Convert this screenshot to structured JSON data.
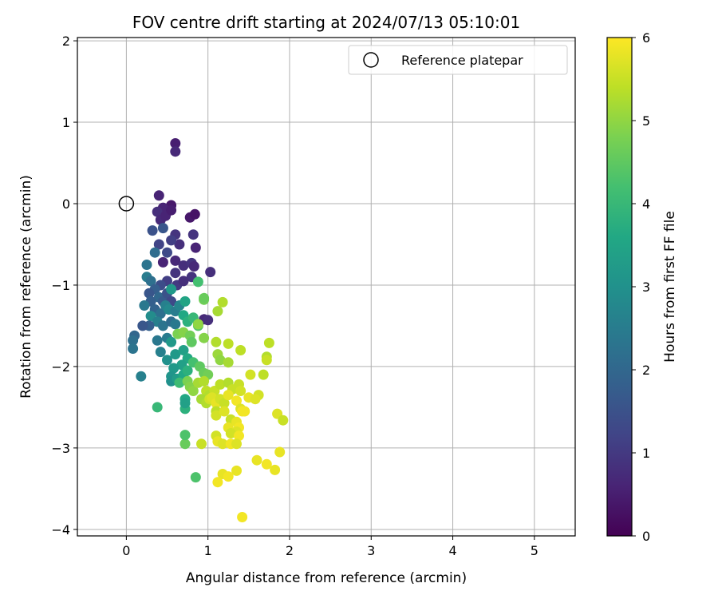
{
  "chart_data": {
    "type": "scatter",
    "title": "FOV centre drift starting at 2024/07/13 05:10:01",
    "xlabel": "Angular distance from reference (arcmin)",
    "ylabel": "Rotation from reference (arcmin)",
    "xlim": [
      -0.6,
      5.5
    ],
    "ylim": [
      -4.08,
      2.04
    ],
    "xticks": [
      0,
      1,
      2,
      3,
      4,
      5
    ],
    "yticks": [
      -4,
      -3,
      -2,
      -1,
      0,
      1,
      2
    ],
    "xtick_labels": [
      "0",
      "1",
      "2",
      "3",
      "4",
      "5"
    ],
    "ytick_labels": [
      "−4",
      "−3",
      "−2",
      "−1",
      "0",
      "1",
      "2"
    ],
    "grid": true,
    "legend": {
      "placement": "top-right",
      "entries": [
        "Reference platepar"
      ]
    },
    "reference_point": {
      "x": 0,
      "y": 0,
      "name": "Reference platepar"
    },
    "colorbar": {
      "label": "Hours from first FF file",
      "range": [
        0,
        6
      ],
      "ticks": [
        0,
        1,
        2,
        3,
        4,
        5,
        6
      ],
      "tick_labels": [
        "0",
        "1",
        "2",
        "3",
        "4",
        "5",
        "6"
      ],
      "colormap": "viridis"
    },
    "points": [
      [
        0.6,
        0.74,
        0.5
      ],
      [
        0.6,
        0.64,
        0.7
      ],
      [
        0.4,
        0.1,
        0.6
      ],
      [
        0.55,
        -0.02,
        0.4
      ],
      [
        0.5,
        -0.1,
        0.5
      ],
      [
        0.45,
        -0.05,
        0.6
      ],
      [
        0.38,
        -0.1,
        0.8
      ],
      [
        0.42,
        -0.2,
        0.7
      ],
      [
        0.48,
        -0.15,
        0.6
      ],
      [
        0.55,
        -0.08,
        0.5
      ],
      [
        0.78,
        -0.17,
        0.4
      ],
      [
        0.84,
        -0.13,
        0.3
      ],
      [
        0.32,
        -0.33,
        1.5
      ],
      [
        0.45,
        -0.3,
        1.6
      ],
      [
        0.6,
        -0.38,
        0.9
      ],
      [
        0.65,
        -0.5,
        0.8
      ],
      [
        0.82,
        -0.38,
        0.9
      ],
      [
        0.85,
        -0.54,
        0.6
      ],
      [
        0.55,
        -0.45,
        1.1
      ],
      [
        0.4,
        -0.5,
        1.2
      ],
      [
        0.5,
        -0.6,
        1.3
      ],
      [
        0.35,
        -0.6,
        2.1
      ],
      [
        0.45,
        -0.72,
        0.6
      ],
      [
        0.6,
        -0.7,
        0.7
      ],
      [
        0.7,
        -0.76,
        0.8
      ],
      [
        0.8,
        -0.73,
        0.9
      ],
      [
        0.83,
        -0.77,
        0.7
      ],
      [
        1.03,
        -0.84,
        0.8
      ],
      [
        0.6,
        -0.85,
        0.9
      ],
      [
        0.62,
        -1.0,
        1.0
      ],
      [
        0.8,
        -0.9,
        0.9
      ],
      [
        0.7,
        -0.95,
        0.8
      ],
      [
        0.5,
        -0.95,
        1.1
      ],
      [
        0.42,
        -1.0,
        1.4
      ],
      [
        0.25,
        -0.75,
        2.3
      ],
      [
        0.25,
        -0.9,
        2.5
      ],
      [
        0.3,
        -0.95,
        2.2
      ],
      [
        0.35,
        -1.05,
        1.8
      ],
      [
        0.28,
        -1.1,
        1.6
      ],
      [
        0.4,
        -1.15,
        2.0
      ],
      [
        0.45,
        -1.2,
        1.7
      ],
      [
        0.5,
        -1.1,
        1.5
      ],
      [
        0.55,
        -1.2,
        1.3
      ],
      [
        0.3,
        -1.2,
        1.8
      ],
      [
        0.22,
        -1.25,
        2.4
      ],
      [
        0.35,
        -1.3,
        1.9
      ],
      [
        0.42,
        -1.35,
        2.2
      ],
      [
        0.48,
        -1.25,
        2.6
      ],
      [
        0.52,
        -1.3,
        2.8
      ],
      [
        0.6,
        -1.32,
        2.5
      ],
      [
        0.65,
        -1.25,
        2.7
      ],
      [
        0.55,
        -1.05,
        3.2
      ],
      [
        0.72,
        -1.2,
        3.5
      ],
      [
        0.88,
        -0.96,
        4.2
      ],
      [
        0.3,
        -1.38,
        2.9
      ],
      [
        0.38,
        -1.45,
        2.6
      ],
      [
        0.45,
        -1.5,
        2.3
      ],
      [
        0.55,
        -1.45,
        2.1
      ],
      [
        0.6,
        -1.48,
        2.4
      ],
      [
        0.7,
        -1.37,
        3.6
      ],
      [
        0.75,
        -1.45,
        3.8
      ],
      [
        0.82,
        -1.4,
        4.0
      ],
      [
        0.88,
        -1.5,
        4.4
      ],
      [
        0.95,
        -1.42,
        0.7
      ],
      [
        1.0,
        -1.43,
        0.8
      ],
      [
        0.28,
        -1.5,
        1.8
      ],
      [
        0.2,
        -1.5,
        1.6
      ],
      [
        0.1,
        -1.62,
        2.0
      ],
      [
        0.08,
        -1.68,
        2.2
      ],
      [
        0.08,
        -1.78,
        2.3
      ],
      [
        0.18,
        -2.12,
        2.6
      ],
      [
        0.38,
        -1.68,
        2.4
      ],
      [
        0.5,
        -1.65,
        2.5
      ],
      [
        0.42,
        -1.82,
        2.6
      ],
      [
        0.55,
        -1.7,
        3.2
      ],
      [
        0.63,
        -1.6,
        4.8
      ],
      [
        0.7,
        -1.58,
        4.9
      ],
      [
        0.78,
        -1.62,
        4.7
      ],
      [
        0.8,
        -1.7,
        4.5
      ],
      [
        0.88,
        -1.48,
        5.0
      ],
      [
        0.95,
        -1.65,
        4.9
      ],
      [
        0.95,
        -1.18,
        4.7
      ],
      [
        0.95,
        -1.16,
        4.6
      ],
      [
        1.12,
        -1.32,
        5.2
      ],
      [
        1.18,
        -1.21,
        5.3
      ],
      [
        1.1,
        -1.7,
        5.3
      ],
      [
        1.25,
        -1.72,
        5.4
      ],
      [
        1.4,
        -1.8,
        5.4
      ],
      [
        1.75,
        -1.71,
        5.4
      ],
      [
        1.72,
        -1.88,
        5.3
      ],
      [
        1.72,
        -1.92,
        5.5
      ],
      [
        1.68,
        -2.1,
        5.4
      ],
      [
        1.52,
        -2.1,
        5.6
      ],
      [
        1.12,
        -1.85,
        5.1
      ],
      [
        1.15,
        -1.92,
        5.0
      ],
      [
        1.25,
        -1.95,
        5.2
      ],
      [
        0.5,
        -1.92,
        3.0
      ],
      [
        0.6,
        -1.85,
        3.2
      ],
      [
        0.7,
        -1.8,
        3.4
      ],
      [
        0.75,
        -1.9,
        3.6
      ],
      [
        0.68,
        -1.98,
        3.4
      ],
      [
        0.58,
        -2.02,
        3.2
      ],
      [
        0.55,
        -2.12,
        3.1
      ],
      [
        0.55,
        -2.18,
        3.0
      ],
      [
        0.62,
        -2.15,
        3.3
      ],
      [
        0.7,
        -2.1,
        3.6
      ],
      [
        0.75,
        -2.05,
        3.8
      ],
      [
        0.82,
        -1.95,
        4.2
      ],
      [
        0.9,
        -2.0,
        4.5
      ],
      [
        0.95,
        -2.08,
        4.6
      ],
      [
        1.0,
        -2.1,
        4.7
      ],
      [
        0.65,
        -2.2,
        4.1
      ],
      [
        0.75,
        -2.18,
        4.8
      ],
      [
        0.78,
        -2.25,
        4.9
      ],
      [
        0.82,
        -2.3,
        5.0
      ],
      [
        0.88,
        -2.2,
        5.2
      ],
      [
        0.95,
        -2.18,
        5.3
      ],
      [
        0.98,
        -2.3,
        5.4
      ],
      [
        1.02,
        -2.35,
        5.3
      ],
      [
        1.08,
        -2.3,
        5.5
      ],
      [
        1.15,
        -2.22,
        5.4
      ],
      [
        1.25,
        -2.2,
        5.3
      ],
      [
        1.3,
        -2.28,
        5.5
      ],
      [
        1.38,
        -2.22,
        5.5
      ],
      [
        1.4,
        -2.3,
        5.6
      ],
      [
        0.72,
        -2.4,
        3.6
      ],
      [
        0.72,
        -2.52,
        3.8
      ],
      [
        0.72,
        -2.45,
        3.4
      ],
      [
        0.72,
        -2.95,
        4.6
      ],
      [
        0.72,
        -2.84,
        4.3
      ],
      [
        0.38,
        -2.5,
        4.0
      ],
      [
        0.92,
        -2.4,
        5.2
      ],
      [
        0.98,
        -2.45,
        5.3
      ],
      [
        1.02,
        -2.4,
        5.6
      ],
      [
        1.05,
        -2.38,
        5.7
      ],
      [
        1.1,
        -2.45,
        5.8
      ],
      [
        1.15,
        -2.4,
        5.6
      ],
      [
        1.2,
        -2.45,
        5.5
      ],
      [
        1.25,
        -2.35,
        5.8
      ],
      [
        1.35,
        -2.42,
        5.9
      ],
      [
        1.4,
        -2.52,
        5.7
      ],
      [
        1.45,
        -2.55,
        5.9
      ],
      [
        1.5,
        -2.38,
        5.8
      ],
      [
        1.62,
        -2.35,
        5.6
      ],
      [
        1.58,
        -2.4,
        5.7
      ],
      [
        1.1,
        -2.55,
        5.4
      ],
      [
        1.1,
        -2.6,
        5.6
      ],
      [
        1.2,
        -2.55,
        5.7
      ],
      [
        1.28,
        -2.65,
        5.5
      ],
      [
        1.35,
        -2.68,
        5.8
      ],
      [
        1.38,
        -2.75,
        5.9
      ],
      [
        1.35,
        -2.8,
        5.7
      ],
      [
        1.25,
        -2.75,
        5.8
      ],
      [
        1.28,
        -2.82,
        5.6
      ],
      [
        1.38,
        -2.85,
        5.9
      ],
      [
        0.92,
        -2.95,
        5.5
      ],
      [
        1.1,
        -2.85,
        5.6
      ],
      [
        1.12,
        -2.92,
        5.8
      ],
      [
        1.18,
        -2.95,
        5.7
      ],
      [
        1.28,
        -2.95,
        5.9
      ],
      [
        1.35,
        -2.95,
        5.7
      ],
      [
        1.85,
        -2.58,
        5.7
      ],
      [
        1.92,
        -2.66,
        5.5
      ],
      [
        1.88,
        -3.05,
        5.8
      ],
      [
        1.6,
        -3.15,
        5.8
      ],
      [
        1.72,
        -3.2,
        5.9
      ],
      [
        1.82,
        -3.27,
        5.8
      ],
      [
        1.35,
        -3.28,
        5.8
      ],
      [
        1.18,
        -3.32,
        5.8
      ],
      [
        1.25,
        -3.35,
        5.9
      ],
      [
        1.12,
        -3.42,
        5.9
      ],
      [
        0.85,
        -3.36,
        4.3
      ],
      [
        1.42,
        -3.85,
        5.9
      ],
      [
        1.42,
        -2.55,
        5.9
      ]
    ]
  }
}
